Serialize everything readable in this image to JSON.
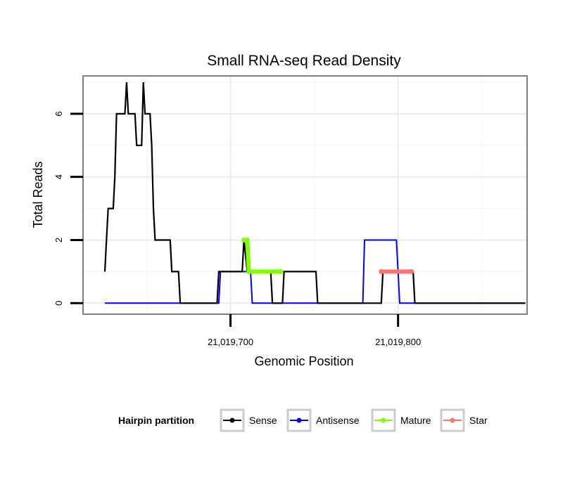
{
  "chart_data": {
    "type": "line",
    "title": "Small RNA-seq Read Density",
    "xlabel": "Genomic Position",
    "ylabel": "Total Reads",
    "xlim": [
      21019612,
      21019877
    ],
    "ylim": [
      -0.35,
      7.2
    ],
    "x_ticks": [
      21019700,
      21019800
    ],
    "x_tick_labels": [
      "21,019,700",
      "21,019,800"
    ],
    "y_ticks": [
      0,
      2,
      4,
      6
    ],
    "y_tick_labels": [
      "0",
      "2",
      "4",
      "6"
    ],
    "grid": true,
    "legend": {
      "title": "Hairpin partition",
      "position": "bottom",
      "entries": [
        "Sense",
        "Antisense",
        "Mature",
        "Star"
      ]
    },
    "series": [
      {
        "name": "Sense",
        "color": "#000000",
        "points": [
          [
            21019625,
            1
          ],
          [
            21019626,
            2
          ],
          [
            21019627,
            3
          ],
          [
            21019630,
            3
          ],
          [
            21019631,
            4
          ],
          [
            21019632,
            6
          ],
          [
            21019637,
            6
          ],
          [
            21019638,
            7
          ],
          [
            21019639,
            6
          ],
          [
            21019643,
            6
          ],
          [
            21019644,
            5
          ],
          [
            21019647,
            5
          ],
          [
            21019648,
            7
          ],
          [
            21019649,
            6
          ],
          [
            21019652,
            6
          ],
          [
            21019653,
            5
          ],
          [
            21019654,
            3
          ],
          [
            21019655,
            2
          ],
          [
            21019664,
            2
          ],
          [
            21019665,
            1
          ],
          [
            21019669,
            1
          ],
          [
            21019670,
            0
          ],
          [
            21019692,
            0
          ],
          [
            21019693,
            1
          ],
          [
            21019707,
            1
          ],
          [
            21019708,
            2
          ],
          [
            21019710,
            1
          ],
          [
            21019724,
            1
          ],
          [
            21019725,
            0
          ],
          [
            21019731,
            0
          ],
          [
            21019732,
            1
          ],
          [
            21019751,
            1
          ],
          [
            21019752,
            0
          ],
          [
            21019790,
            0
          ],
          [
            21019791,
            1
          ],
          [
            21019809,
            1
          ],
          [
            21019810,
            0
          ],
          [
            21019876,
            0
          ]
        ]
      },
      {
        "name": "Antisense",
        "color": "#0000ff",
        "points": [
          [
            21019625,
            0
          ],
          [
            21019693,
            0
          ],
          [
            21019694,
            1
          ],
          [
            21019712,
            1
          ],
          [
            21019713,
            0
          ],
          [
            21019779,
            0
          ],
          [
            21019780,
            2
          ],
          [
            21019799,
            2
          ],
          [
            21019800,
            1
          ],
          [
            21019801,
            0
          ],
          [
            21019876,
            0
          ]
        ]
      },
      {
        "name": "Mature",
        "color": "#7fff00",
        "points": [
          [
            21019708,
            2
          ],
          [
            21019710,
            2
          ],
          [
            21019711,
            1
          ],
          [
            21019730,
            1
          ]
        ]
      },
      {
        "name": "Star",
        "color": "#f8766d",
        "points": [
          [
            21019790,
            1
          ],
          [
            21019808,
            1
          ]
        ]
      }
    ]
  }
}
